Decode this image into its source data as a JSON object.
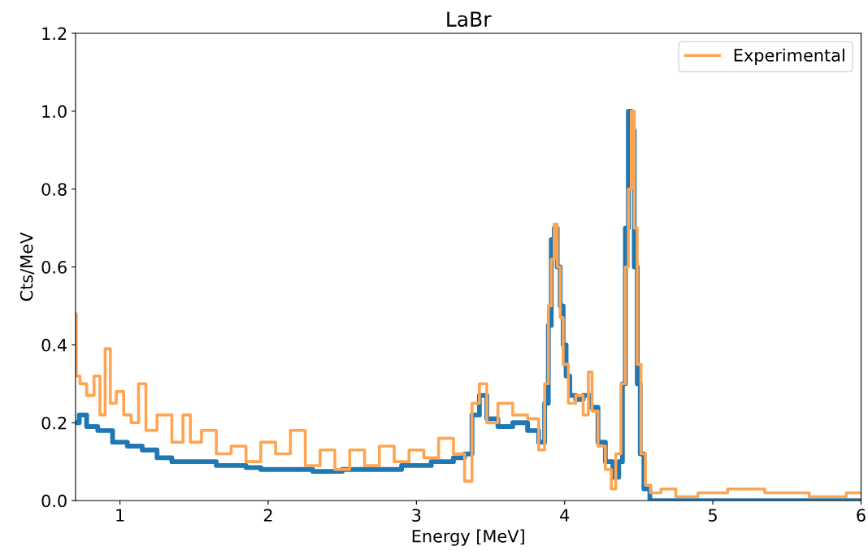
{
  "chart_data": {
    "type": "step",
    "title": "LaBr",
    "xlabel": "Energy [MeV]",
    "ylabel": "Cts/MeV",
    "xlim": [
      0.7,
      6
    ],
    "ylim": [
      0,
      1.2
    ],
    "xticks": [
      1,
      2,
      3,
      4,
      5,
      6
    ],
    "yticks": [
      {
        "value": 0,
        "label": "0.0"
      },
      0.2,
      0.4,
      0.6,
      0.8,
      {
        "value": 1,
        "label": "1.0"
      },
      1.2
    ],
    "grid": false,
    "legend": "top right",
    "line_style": "solid",
    "marker": "none",
    "series": [
      {
        "color": "#1f77b4",
        "x": [
          0.7,
          0.75,
          0.8,
          0.9,
          1.0,
          1.1,
          1.2,
          1.3,
          1.4,
          1.5,
          1.6,
          1.7,
          1.8,
          1.9,
          2.0,
          2.2,
          2.4,
          2.6,
          2.8,
          3.0,
          3.2,
          3.3,
          3.35,
          3.4,
          3.45,
          3.5,
          3.6,
          3.7,
          3.8,
          3.85,
          3.88,
          3.9,
          3.92,
          3.94,
          3.96,
          3.98,
          4.0,
          4.02,
          4.05,
          4.1,
          4.15,
          4.2,
          4.25,
          4.3,
          4.35,
          4.38,
          4.4,
          4.42,
          4.44,
          4.46,
          4.48,
          4.5,
          4.52,
          4.55,
          4.6,
          5.0,
          6.0
        ],
        "values": [
          0.2,
          0.22,
          0.19,
          0.18,
          0.15,
          0.14,
          0.13,
          0.11,
          0.1,
          0.1,
          0.1,
          0.09,
          0.09,
          0.085,
          0.08,
          0.08,
          0.075,
          0.08,
          0.08,
          0.09,
          0.1,
          0.11,
          0.12,
          0.22,
          0.27,
          0.21,
          0.19,
          0.2,
          0.18,
          0.15,
          0.25,
          0.45,
          0.67,
          0.7,
          0.6,
          0.5,
          0.4,
          0.32,
          0.27,
          0.26,
          0.27,
          0.24,
          0.15,
          0.1,
          0.06,
          0.1,
          0.3,
          0.7,
          1.0,
          0.95,
          0.6,
          0.3,
          0.12,
          0.03,
          0.0,
          0.0,
          0.0
        ]
      },
      {
        "name": "Experimental",
        "color": "#ffa552",
        "x": [
          0.7,
          0.71,
          0.75,
          0.8,
          0.85,
          0.88,
          0.92,
          0.95,
          1.0,
          1.05,
          1.1,
          1.15,
          1.2,
          1.3,
          1.4,
          1.45,
          1.5,
          1.6,
          1.7,
          1.8,
          1.9,
          2.0,
          2.1,
          2.2,
          2.3,
          2.4,
          2.5,
          2.6,
          2.7,
          2.8,
          2.9,
          3.0,
          3.1,
          3.2,
          3.3,
          3.35,
          3.4,
          3.45,
          3.5,
          3.6,
          3.7,
          3.8,
          3.85,
          3.88,
          3.9,
          3.92,
          3.94,
          3.96,
          3.98,
          4.0,
          4.05,
          4.1,
          4.15,
          4.17,
          4.2,
          4.25,
          4.3,
          4.33,
          4.36,
          4.4,
          4.42,
          4.44,
          4.46,
          4.48,
          4.5,
          4.53,
          4.56,
          4.6,
          4.7,
          4.8,
          5.0,
          5.2,
          5.5,
          5.8,
          6.0
        ],
        "values": [
          0.48,
          0.32,
          0.3,
          0.27,
          0.32,
          0.22,
          0.39,
          0.25,
          0.28,
          0.22,
          0.2,
          0.3,
          0.18,
          0.22,
          0.15,
          0.22,
          0.15,
          0.18,
          0.12,
          0.14,
          0.1,
          0.15,
          0.12,
          0.18,
          0.09,
          0.13,
          0.08,
          0.13,
          0.09,
          0.14,
          0.1,
          0.13,
          0.11,
          0.16,
          0.12,
          0.05,
          0.25,
          0.3,
          0.2,
          0.25,
          0.22,
          0.21,
          0.13,
          0.3,
          0.5,
          0.62,
          0.71,
          0.6,
          0.47,
          0.35,
          0.25,
          0.27,
          0.22,
          0.33,
          0.23,
          0.14,
          0.08,
          0.03,
          0.12,
          0.3,
          0.6,
          0.8,
          1.0,
          0.7,
          0.35,
          0.12,
          0.04,
          0.02,
          0.03,
          0.01,
          0.02,
          0.03,
          0.02,
          0.01,
          0.02
        ]
      }
    ]
  }
}
